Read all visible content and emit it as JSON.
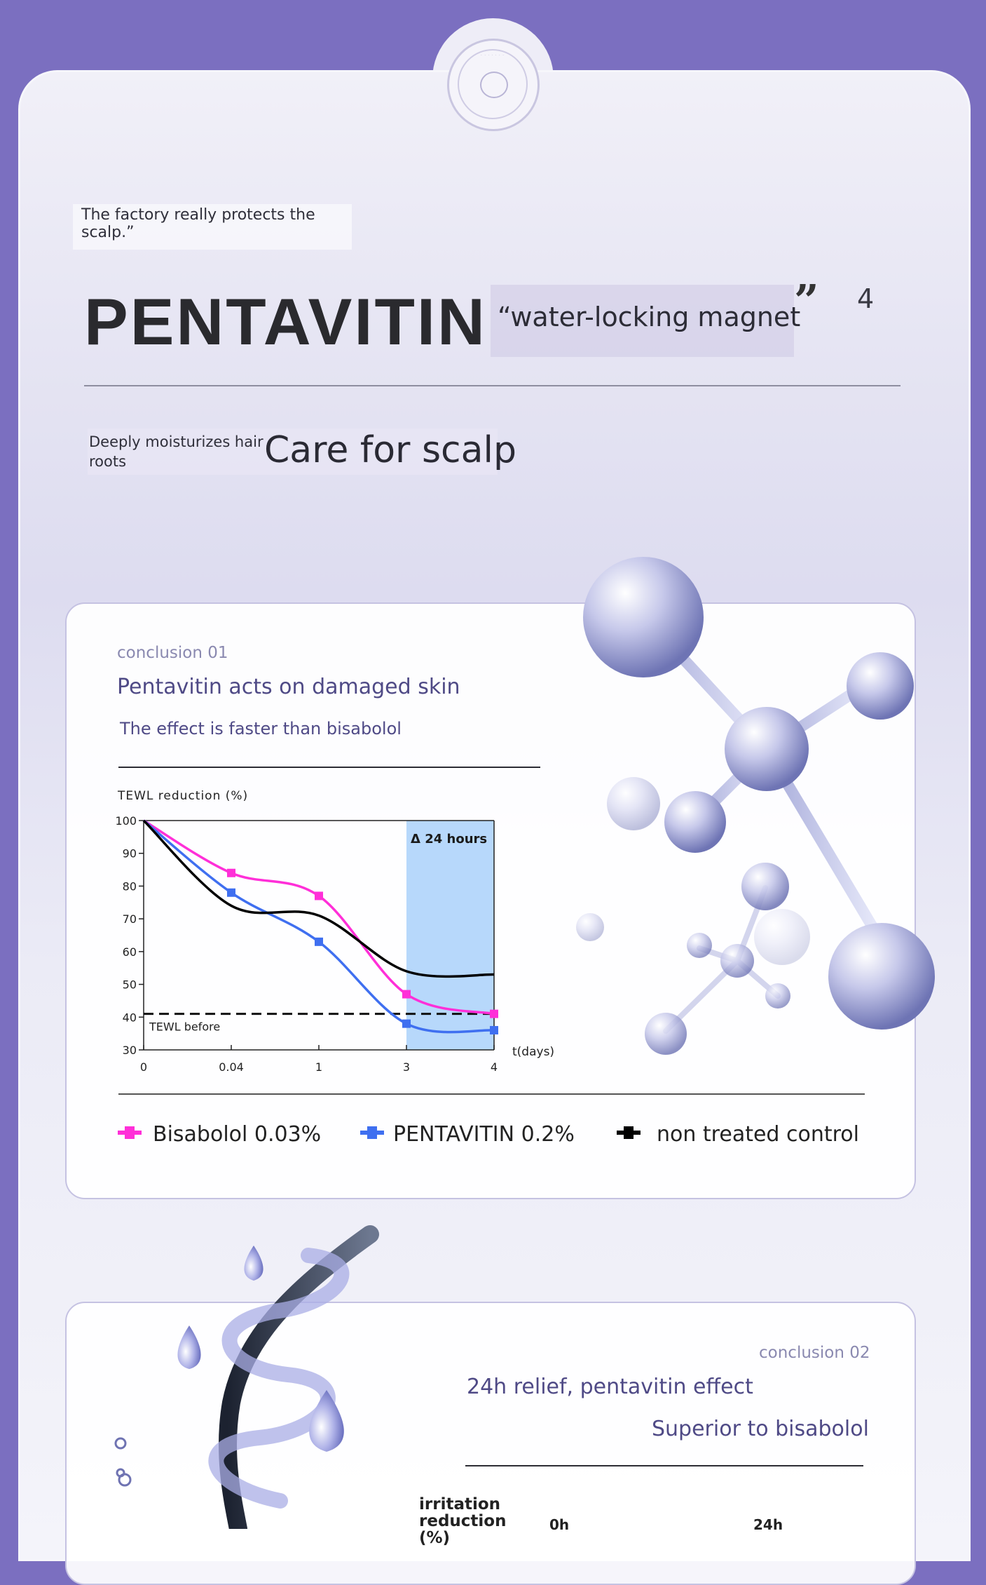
{
  "header": {
    "quote": "The factory really protects the scalp.”",
    "brand": "PENTAVITIN",
    "tagline": "“water-locking magnet",
    "close_quote": "”",
    "page_number": "4",
    "sub_small": "Deeply moisturizes hair roots",
    "sub_large": "Care for scalp"
  },
  "conclusion1": {
    "label": "conclusion  01",
    "title": "Pentavitin acts on damaged skin",
    "subtitle": "The effect is faster than bisabolol"
  },
  "chart_data": {
    "type": "line",
    "ylabel": "TEWL reduction (%)",
    "xlabel": "t(days)",
    "x_ticks": [
      "0",
      "0.04",
      "1",
      "3",
      "4"
    ],
    "y_ticks": [
      "30",
      "40",
      "50",
      "60",
      "70",
      "80",
      "90",
      "100"
    ],
    "ylim": [
      30,
      100
    ],
    "highlight_label": "Δ 24 hours",
    "reference_label": "TEWL before",
    "reference_value": 41,
    "series": [
      {
        "name": "Bisabolol 0.03%",
        "color": "#ff2fd8",
        "values": [
          100,
          84,
          77,
          47,
          41
        ]
      },
      {
        "name": "PENTAVITIN 0.2%",
        "color": "#3f6ff0",
        "values": [
          100,
          78,
          63,
          38,
          36
        ]
      },
      {
        "name": "non treated control",
        "color": "#000000",
        "values": [
          100,
          74,
          71,
          54,
          53
        ]
      }
    ]
  },
  "legend": {
    "bisabolol": "Bisabolol 0.03%",
    "pentavitin": "PENTAVITIN 0.2%",
    "control": "non treated control"
  },
  "conclusion2": {
    "label": "conclusion  02",
    "title": "24h relief, pentavitin effect",
    "subtitle": "Superior to bisabolol",
    "chart_label": "irritation reduction (%)",
    "tick_a": "0h",
    "tick_b": "24h"
  },
  "colors": {
    "page_background": "#7b6fc0",
    "accent_text": "#4f4a86",
    "highlight_band": "#b7d8fb"
  },
  "icons": [
    "logo-badge-icon",
    "molecule-illustration",
    "hair-helix-illustration",
    "water-drop-icon"
  ]
}
